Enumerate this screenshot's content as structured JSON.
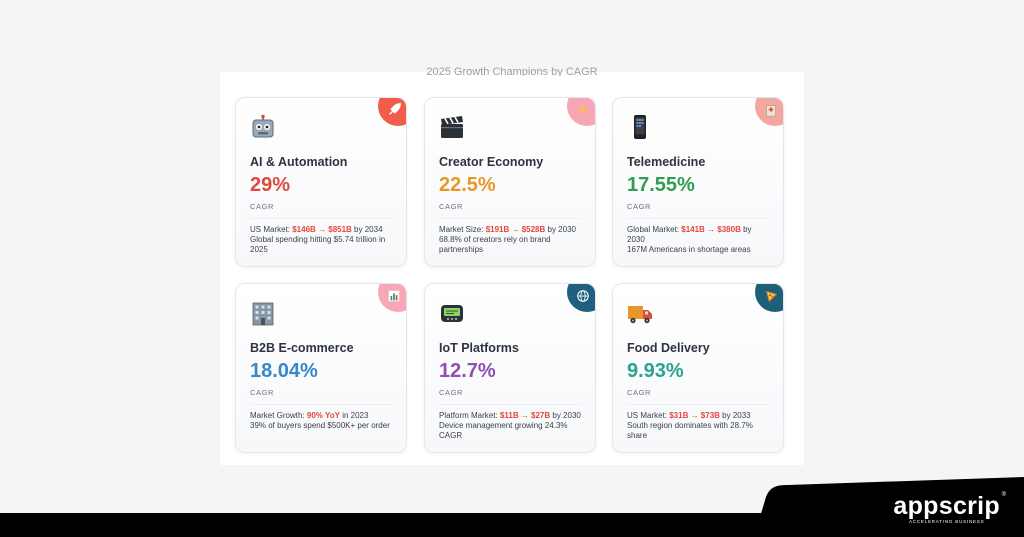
{
  "panel_title": "2025 Growth Champions by CAGR",
  "cards": [
    {
      "title": "AI & Automation",
      "value": "29%",
      "unit": "CAGR",
      "color": "#e04a3d",
      "icon": "robot-icon",
      "badge_icon": "rocket-icon",
      "badge_color": "#f25c4a",
      "detail": {
        "lead": "US Market: ",
        "hl": "$146B → $851B",
        "tail": " by 2034",
        "line2": "Global spending hitting $5.74 trillion in 2025"
      }
    },
    {
      "title": "Creator Economy",
      "value": "22.5%",
      "unit": "CAGR",
      "color": "#e8962a",
      "icon": "clapperboard-icon",
      "badge_icon": "lightning-icon",
      "badge_color": "#f7a7b3",
      "detail": {
        "lead": "Market Size: ",
        "hl": "$191B → $528B",
        "tail": " by 2030",
        "line2": "68.8% of creators rely on brand partnerships"
      }
    },
    {
      "title": "Telemedicine",
      "value": "17.55%",
      "unit": "CAGR",
      "color": "#2f9e4f",
      "icon": "smartphone-icon",
      "badge_icon": "hospital-icon",
      "badge_color": "#f4a6a0",
      "detail": {
        "lead": "Global Market: ",
        "hl": "$141B → $380B",
        "tail": " by 2030",
        "line2": "167M Americans in shortage areas"
      }
    },
    {
      "title": "B2B E-commerce",
      "value": "18.04%",
      "unit": "CAGR",
      "color": "#3a86c8",
      "icon": "office-building-icon",
      "badge_icon": "bar-chart-icon",
      "badge_color": "#f7a8b8",
      "detail": {
        "lead": "Market Growth: ",
        "hl": "90% YoY",
        "tail": " in 2023",
        "line2": "39% of buyers spend $500K+ per order"
      }
    },
    {
      "title": "IoT Platforms",
      "value": "12.7%",
      "unit": "CAGR",
      "color": "#8e4fb0",
      "icon": "pager-icon",
      "badge_icon": "globe-icon",
      "badge_color": "#1f5f80",
      "detail": {
        "lead": "Platform Market: ",
        "hl": "$11B → $27B",
        "tail": " by 2030",
        "line2": "Device management growing 24.3% CAGR"
      }
    },
    {
      "title": "Food Delivery",
      "value": "9.93%",
      "unit": "CAGR",
      "color": "#2aa392",
      "icon": "delivery-truck-icon",
      "badge_icon": "pizza-icon",
      "badge_color": "#1e5f7a",
      "detail": {
        "lead": "US Market: ",
        "hl": "$31B → $73B",
        "tail": " by 2033",
        "line2": "South region dominates with 28.7% share"
      }
    }
  ],
  "branding": {
    "name": "appscrip",
    "tagline": "ACCELERATING BUSINESS",
    "mark": "®"
  }
}
